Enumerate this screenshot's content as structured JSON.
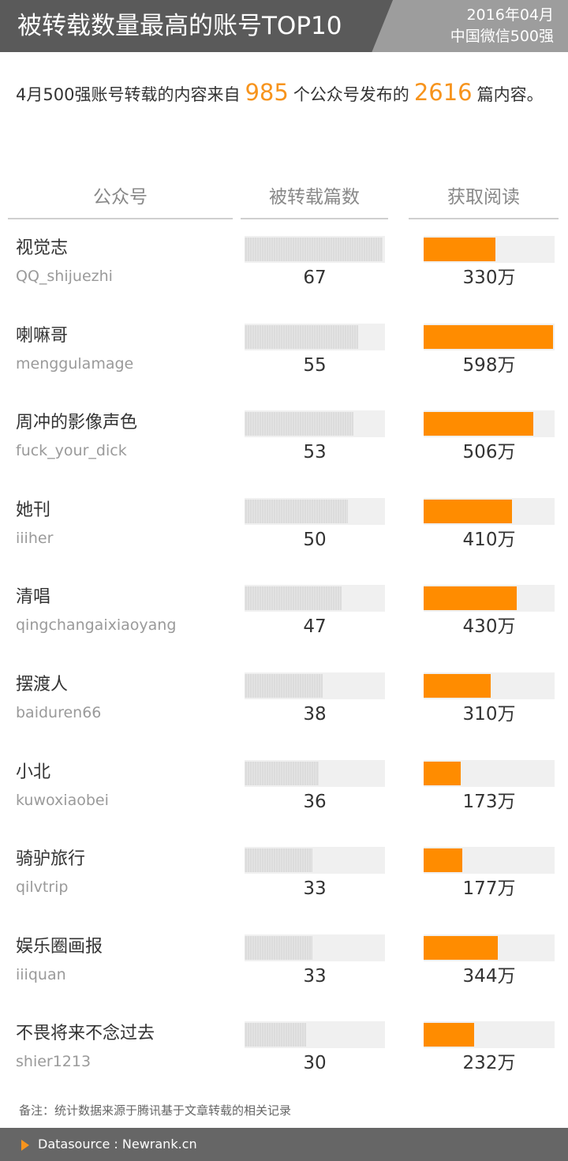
{
  "header": {
    "title": "被转载数量最高的账号TOP10",
    "date": "2016年04月",
    "subtitle": "中国微信500强"
  },
  "intro": {
    "prefix": "4月500强账号转载的内容来自",
    "accounts_count": "985",
    "middle": "个公众号发布的",
    "articles_count": "2616",
    "suffix": "篇内容。"
  },
  "columns": {
    "account": "公众号",
    "reposts": "被转载篇数",
    "reads": "获取阅读"
  },
  "colors": {
    "header_bg": "#5a5a5a",
    "header_accent": "#9d9d9d",
    "highlight": "#f7941d",
    "reads_bar": "#ff8c00",
    "reposts_bar": "#dcdcdc",
    "track": "#f0f0f0"
  },
  "chart_data": {
    "type": "bar",
    "categories": [
      "视觉志",
      "喇嘛哥",
      "周冲的影像声色",
      "她刊",
      "清唱",
      "摆渡人",
      "小北",
      "骑驴旅行",
      "娱乐圈画报",
      "不畏将来不念过去"
    ],
    "ids": [
      "QQ_shijuezhi",
      "menggulamage",
      "fuck_your_dick",
      "iiiher",
      "qingchangaixiaoyang",
      "baiduren66",
      "kuwoxiaobei",
      "qilvtrip",
      "iiiquan",
      "shier1213"
    ],
    "series": [
      {
        "name": "被转载篇数",
        "values": [
          67,
          55,
          53,
          50,
          47,
          38,
          36,
          33,
          33,
          30
        ]
      },
      {
        "name": "获取阅读",
        "values": [
          330,
          598,
          506,
          410,
          430,
          310,
          173,
          177,
          344,
          232
        ]
      }
    ],
    "labels": {
      "reposts": [
        "67",
        "55",
        "53",
        "50",
        "47",
        "38",
        "36",
        "33",
        "33",
        "30"
      ],
      "reads": [
        "330万",
        "598万",
        "506万",
        "410万",
        "430万",
        "310万",
        "173万",
        "177万",
        "344万",
        "232万"
      ]
    },
    "scale_max": {
      "reposts": 67,
      "reads": 598
    }
  },
  "note": "备注：统计数据来源于腾讯基于文章转载的相关记录",
  "footer": "Datasource : Newrank.cn"
}
